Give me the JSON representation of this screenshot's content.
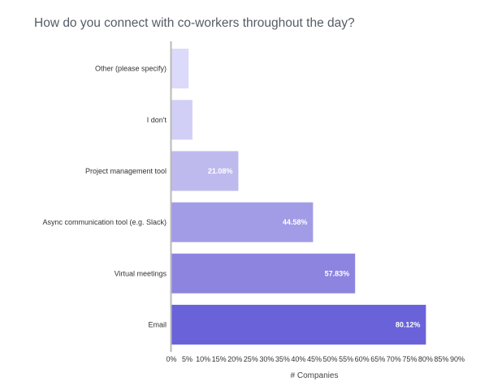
{
  "chart_data": {
    "type": "bar",
    "orientation": "horizontal",
    "title": "How do you connect with co-workers throughout the day?",
    "xlabel": "# Companies",
    "ylabel": "",
    "xlim": [
      0,
      90
    ],
    "x_ticks": [
      "0%",
      "5%",
      "10%",
      "15%",
      "20%",
      "25%",
      "30%",
      "35%",
      "40%",
      "45%",
      "50%",
      "55%",
      "60%",
      "65%",
      "70%",
      "75%",
      "80%",
      "85%",
      "90%"
    ],
    "grid": false,
    "legend": "none",
    "categories": [
      "Other (please specify)",
      "I don't",
      "Project management tool",
      "Async communication tool (e.g. Slack)",
      "Virtual meetings",
      "Email"
    ],
    "values": [
      5.42,
      6.63,
      21.08,
      44.58,
      57.83,
      80.12
    ],
    "data_labels": [
      "",
      "",
      "21.08%",
      "44.58%",
      "57.83%",
      "80.12%"
    ],
    "colors": [
      "#dcdafa",
      "#d2cff6",
      "#bfbaee",
      "#a29be6",
      "#8d84e0",
      "#6a62d9"
    ],
    "axis_color": "#b8b8b8"
  }
}
